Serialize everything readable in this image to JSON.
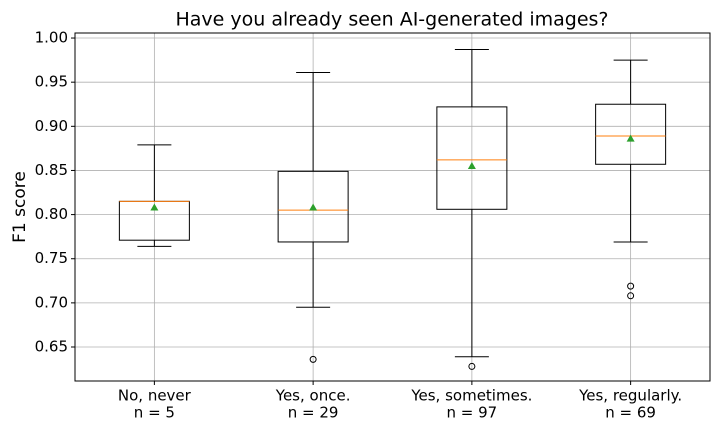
{
  "chart_data": {
    "type": "box",
    "title": "Have you already seen AI-generated images?",
    "y_label": "F1 score",
    "categories": [
      "No, never",
      "Yes, once.",
      "Yes, sometimes.",
      "Yes, regularly."
    ],
    "n_labels": [
      "n = 5",
      "n = 29",
      "n = 97",
      "n = 69"
    ],
    "boxes": [
      {
        "whislo": 0.764,
        "q1": 0.771,
        "med": 0.815,
        "q3": 0.815,
        "whishi": 0.879,
        "mean": 0.808,
        "fliers": []
      },
      {
        "whislo": 0.695,
        "q1": 0.769,
        "med": 0.805,
        "q3": 0.849,
        "whishi": 0.961,
        "mean": 0.808,
        "fliers": [
          0.636
        ]
      },
      {
        "whislo": 0.639,
        "q1": 0.806,
        "med": 0.862,
        "q3": 0.922,
        "whishi": 0.987,
        "mean": 0.855,
        "fliers": [
          0.628
        ]
      },
      {
        "whislo": 0.769,
        "q1": 0.857,
        "med": 0.889,
        "q3": 0.925,
        "whishi": 0.975,
        "mean": 0.886,
        "fliers": [
          0.719,
          0.708
        ]
      }
    ],
    "box_color": "#000000",
    "median_color": "#ff7f0e",
    "mean_color": "#2ca02c",
    "ylim": [
      0.6115,
      1.0057
    ],
    "yticks": [
      0.65,
      {
        "value": 0.7,
        "label": "0.70"
      },
      0.75,
      {
        "value": 0.8,
        "label": "0.80"
      },
      0.85,
      {
        "value": 0.9,
        "label": "0.90"
      },
      0.95,
      {
        "value": 1,
        "label": "1.00"
      }
    ],
    "grid": true
  }
}
